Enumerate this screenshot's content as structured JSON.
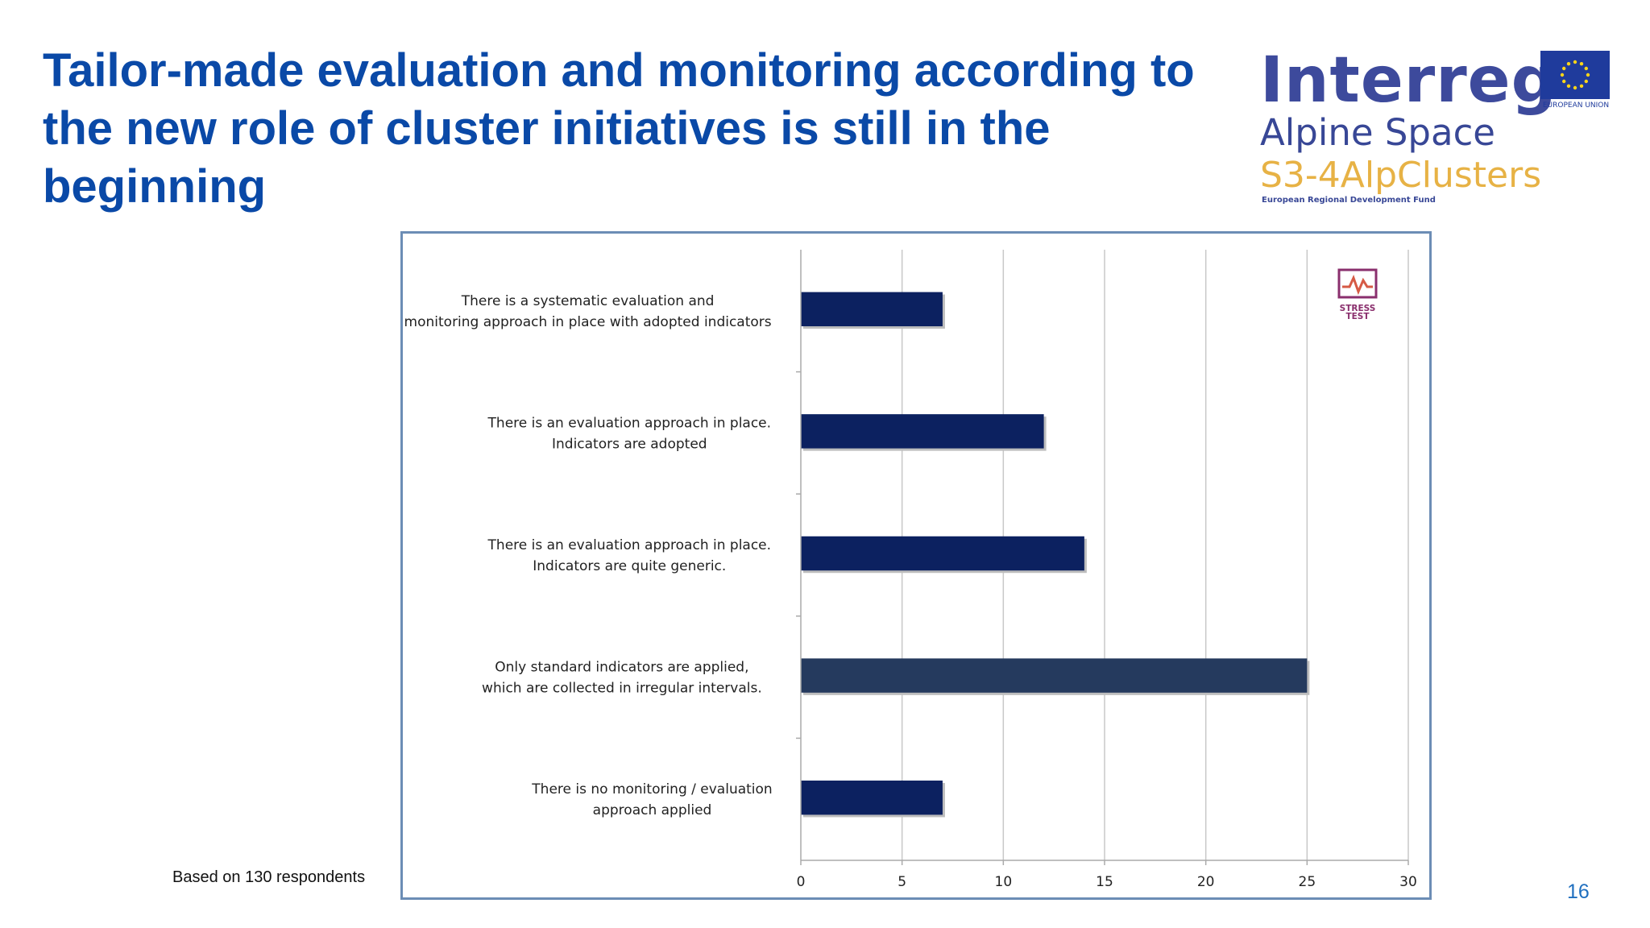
{
  "slide": {
    "title": "Tailor-made evaluation and monitoring according to the new role of cluster initiatives is still in the beginning",
    "footnote": "Based on 130 respondents",
    "page_number": "16"
  },
  "logo": {
    "interreg": "Interreg",
    "program": "Alpine Space",
    "project": "S3-4AlpClusters",
    "fund": "European Regional Development Fund",
    "eu_label": "EUROPEAN UNION",
    "colors": {
      "interreg": "#3d4a9c",
      "project": "#e7b245",
      "eu_flag": "#1f3b9c"
    }
  },
  "chart_badge": {
    "text": "STRESS TEST",
    "icon": "stress-test-icon"
  },
  "chart_data": {
    "type": "bar",
    "orientation": "horizontal",
    "title": "",
    "xlabel": "",
    "ylabel": "",
    "xlim": [
      0,
      30
    ],
    "xticks": [
      0,
      5,
      10,
      15,
      20,
      25,
      30
    ],
    "grid": "vertical",
    "bar_color": "#0c2160",
    "highlight_color": "#253a5e",
    "categories": [
      [
        "There is a systematic evaluation and",
        "monitoring approach in place with adopted indicators"
      ],
      [
        "There is an evaluation approach in place.",
        "Indicators are adopted"
      ],
      [
        "There is an evaluation approach in place.",
        "Indicators are quite generic."
      ],
      [
        "Only standard indicators are applied,",
        "which are collected in irregular intervals."
      ],
      [
        "There is no monitoring / evaluation",
        "approach applied"
      ]
    ],
    "values": [
      7,
      12,
      14,
      25,
      7
    ]
  }
}
